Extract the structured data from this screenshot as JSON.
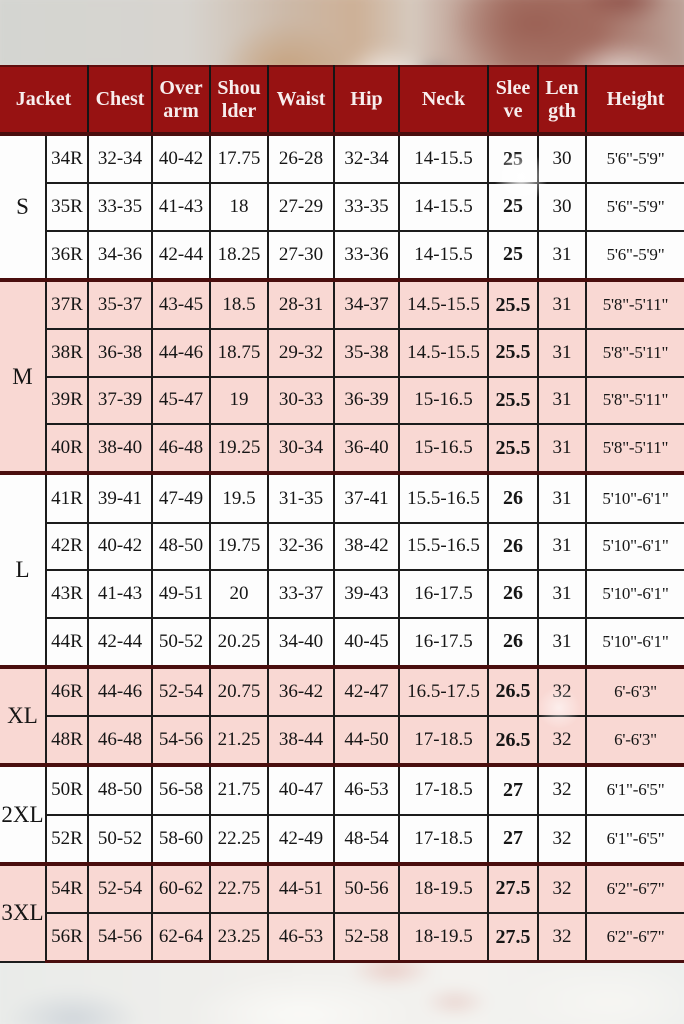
{
  "colors": {
    "header_bg": "#971212",
    "header_text": "#f7eded",
    "row_pink": "#f9d8d3",
    "row_white": "#fdfdfd",
    "grid_line": "#1c1c1c",
    "group_separator": "#4a0e0e",
    "body_text": "#161616"
  },
  "chart_data": {
    "type": "table",
    "headers": [
      "Jacket",
      "Chest",
      "Over\narm",
      "Shou\nlder",
      "Waist",
      "Hip",
      "Neck",
      "Slee\nve",
      "Len\ngth",
      "Height"
    ],
    "col_keys": [
      "jacket",
      "chest",
      "overarm",
      "shoulder",
      "waist",
      "hip",
      "neck",
      "sleeve",
      "length",
      "height"
    ],
    "groups": [
      {
        "label": "S",
        "shade": "white",
        "rows": [
          {
            "jacket": "34R",
            "chest": "32-34",
            "overarm": "40-42",
            "shoulder": "17.75",
            "waist": "26-28",
            "hip": "32-34",
            "neck": "14-15.5",
            "sleeve": "25",
            "length": "30",
            "height": "5'6\"-5'9\""
          },
          {
            "jacket": "35R",
            "chest": "33-35",
            "overarm": "41-43",
            "shoulder": "18",
            "waist": "27-29",
            "hip": "33-35",
            "neck": "14-15.5",
            "sleeve": "25",
            "length": "30",
            "height": "5'6\"-5'9\""
          },
          {
            "jacket": "36R",
            "chest": "34-36",
            "overarm": "42-44",
            "shoulder": "18.25",
            "waist": "27-30",
            "hip": "33-36",
            "neck": "14-15.5",
            "sleeve": "25",
            "length": "31",
            "height": "5'6\"-5'9\""
          }
        ]
      },
      {
        "label": "M",
        "shade": "pink",
        "rows": [
          {
            "jacket": "37R",
            "chest": "35-37",
            "overarm": "43-45",
            "shoulder": "18.5",
            "waist": "28-31",
            "hip": "34-37",
            "neck": "14.5-15.5",
            "sleeve": "25.5",
            "length": "31",
            "height": "5'8\"-5'11\""
          },
          {
            "jacket": "38R",
            "chest": "36-38",
            "overarm": "44-46",
            "shoulder": "18.75",
            "waist": "29-32",
            "hip": "35-38",
            "neck": "14.5-15.5",
            "sleeve": "25.5",
            "length": "31",
            "height": "5'8\"-5'11\""
          },
          {
            "jacket": "39R",
            "chest": "37-39",
            "overarm": "45-47",
            "shoulder": "19",
            "waist": "30-33",
            "hip": "36-39",
            "neck": "15-16.5",
            "sleeve": "25.5",
            "length": "31",
            "height": "5'8\"-5'11\""
          },
          {
            "jacket": "40R",
            "chest": "38-40",
            "overarm": "46-48",
            "shoulder": "19.25",
            "waist": "30-34",
            "hip": "36-40",
            "neck": "15-16.5",
            "sleeve": "25.5",
            "length": "31",
            "height": "5'8\"-5'11\""
          }
        ]
      },
      {
        "label": "L",
        "shade": "white",
        "rows": [
          {
            "jacket": "41R",
            "chest": "39-41",
            "overarm": "47-49",
            "shoulder": "19.5",
            "waist": "31-35",
            "hip": "37-41",
            "neck": "15.5-16.5",
            "sleeve": "26",
            "length": "31",
            "height": "5'10\"-6'1\""
          },
          {
            "jacket": "42R",
            "chest": "40-42",
            "overarm": "48-50",
            "shoulder": "19.75",
            "waist": "32-36",
            "hip": "38-42",
            "neck": "15.5-16.5",
            "sleeve": "26",
            "length": "31",
            "height": "5'10\"-6'1\""
          },
          {
            "jacket": "43R",
            "chest": "41-43",
            "overarm": "49-51",
            "shoulder": "20",
            "waist": "33-37",
            "hip": "39-43",
            "neck": "16-17.5",
            "sleeve": "26",
            "length": "31",
            "height": "5'10\"-6'1\""
          },
          {
            "jacket": "44R",
            "chest": "42-44",
            "overarm": "50-52",
            "shoulder": "20.25",
            "waist": "34-40",
            "hip": "40-45",
            "neck": "16-17.5",
            "sleeve": "26",
            "length": "31",
            "height": "5'10\"-6'1\""
          }
        ]
      },
      {
        "label": "XL",
        "shade": "pink",
        "rows": [
          {
            "jacket": "46R",
            "chest": "44-46",
            "overarm": "52-54",
            "shoulder": "20.75",
            "waist": "36-42",
            "hip": "42-47",
            "neck": "16.5-17.5",
            "sleeve": "26.5",
            "length": "32",
            "height": "6'-6'3\""
          },
          {
            "jacket": "48R",
            "chest": "46-48",
            "overarm": "54-56",
            "shoulder": "21.25",
            "waist": "38-44",
            "hip": "44-50",
            "neck": "17-18.5",
            "sleeve": "26.5",
            "length": "32",
            "height": "6'-6'3\""
          }
        ]
      },
      {
        "label": "2XL",
        "shade": "white",
        "rows": [
          {
            "jacket": "50R",
            "chest": "48-50",
            "overarm": "56-58",
            "shoulder": "21.75",
            "waist": "40-47",
            "hip": "46-53",
            "neck": "17-18.5",
            "sleeve": "27",
            "length": "32",
            "height": "6'1\"-6'5\""
          },
          {
            "jacket": "52R",
            "chest": "50-52",
            "overarm": "58-60",
            "shoulder": "22.25",
            "waist": "42-49",
            "hip": "48-54",
            "neck": "17-18.5",
            "sleeve": "27",
            "length": "32",
            "height": "6'1\"-6'5\""
          }
        ]
      },
      {
        "label": "3XL",
        "shade": "pink",
        "rows": [
          {
            "jacket": "54R",
            "chest": "52-54",
            "overarm": "60-62",
            "shoulder": "22.75",
            "waist": "44-51",
            "hip": "50-56",
            "neck": "18-19.5",
            "sleeve": "27.5",
            "length": "32",
            "height": "6'2\"-6'7\""
          },
          {
            "jacket": "56R",
            "chest": "54-56",
            "overarm": "62-64",
            "shoulder": "23.25",
            "waist": "46-53",
            "hip": "52-58",
            "neck": "18-19.5",
            "sleeve": "27.5",
            "length": "32",
            "height": "6'2\"-6'7\""
          }
        ]
      }
    ]
  }
}
